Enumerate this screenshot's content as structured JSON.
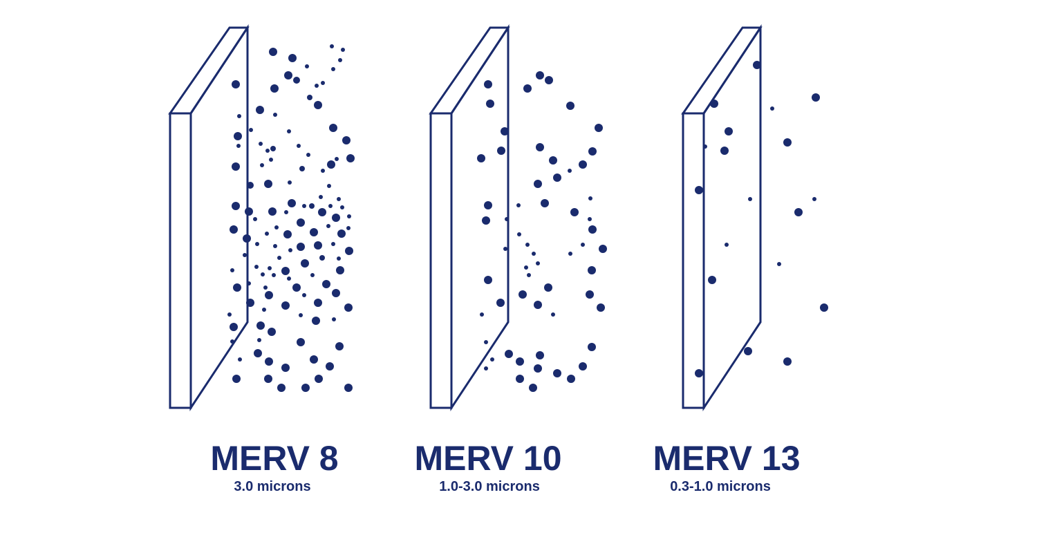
{
  "colors": {
    "ink": "#1a2b6d",
    "background": "#ffffff"
  },
  "filters": [
    {
      "id": "merv8",
      "title": "MERV 8",
      "subtitle": "3.0 microns",
      "particle_density": "high"
    },
    {
      "id": "merv10",
      "title": "MERV 10",
      "subtitle": "1.0-3.0 microns",
      "particle_density": "medium"
    },
    {
      "id": "merv13",
      "title": "MERV 13",
      "subtitle": "0.3-1.0 microns",
      "particle_density": "low"
    }
  ]
}
